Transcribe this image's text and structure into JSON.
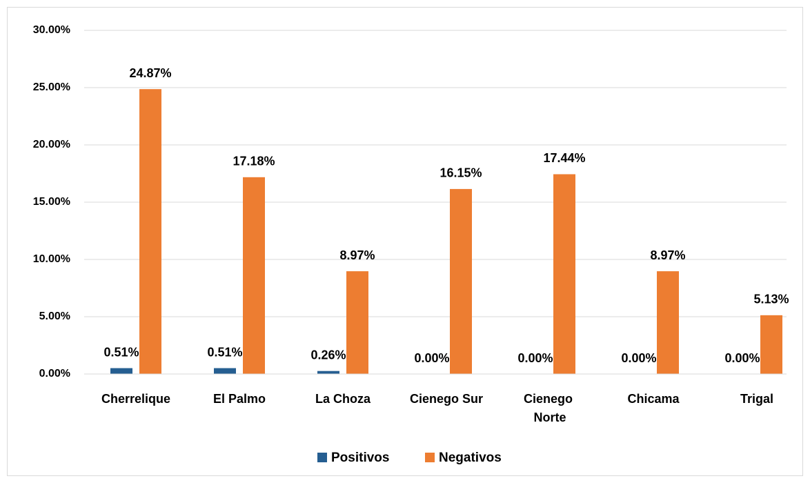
{
  "chart_data": {
    "type": "bar",
    "categories": [
      "Cherrelique",
      "El Palmo",
      "La Choza",
      "Cienego Sur",
      "Cienego Norte",
      "Chicama",
      "Trigal"
    ],
    "series": [
      {
        "name": "Positivos",
        "color": "#255e91",
        "values": [
          0.51,
          0.51,
          0.26,
          0,
          0,
          0,
          0
        ],
        "value_labels": [
          "0.51%",
          "0.51%",
          "0.26%",
          "0.00%",
          "0.00%",
          "0.00%",
          "0.00%"
        ]
      },
      {
        "name": "Negativos",
        "color": "#ed7d31",
        "values": [
          24.87,
          17.18,
          8.97,
          16.15,
          17.44,
          8.97,
          5.13
        ],
        "value_labels": [
          "24.87%",
          "17.18%",
          "8.97%",
          "16.15%",
          "17.44%",
          "8.97%",
          "5.13%"
        ]
      }
    ],
    "ylim": [
      0,
      30
    ],
    "yticks": [
      {
        "value": 0,
        "label": "0.00%"
      },
      {
        "value": 5,
        "label": "5.00%"
      },
      {
        "value": 10,
        "label": "10.00%"
      },
      {
        "value": 15,
        "label": "15.00%"
      },
      {
        "value": 20,
        "label": "20.00%"
      },
      {
        "value": 25,
        "label": "25.00%"
      },
      {
        "value": 30,
        "label": "30.00%"
      }
    ],
    "grid": true,
    "legend": "bottom"
  }
}
